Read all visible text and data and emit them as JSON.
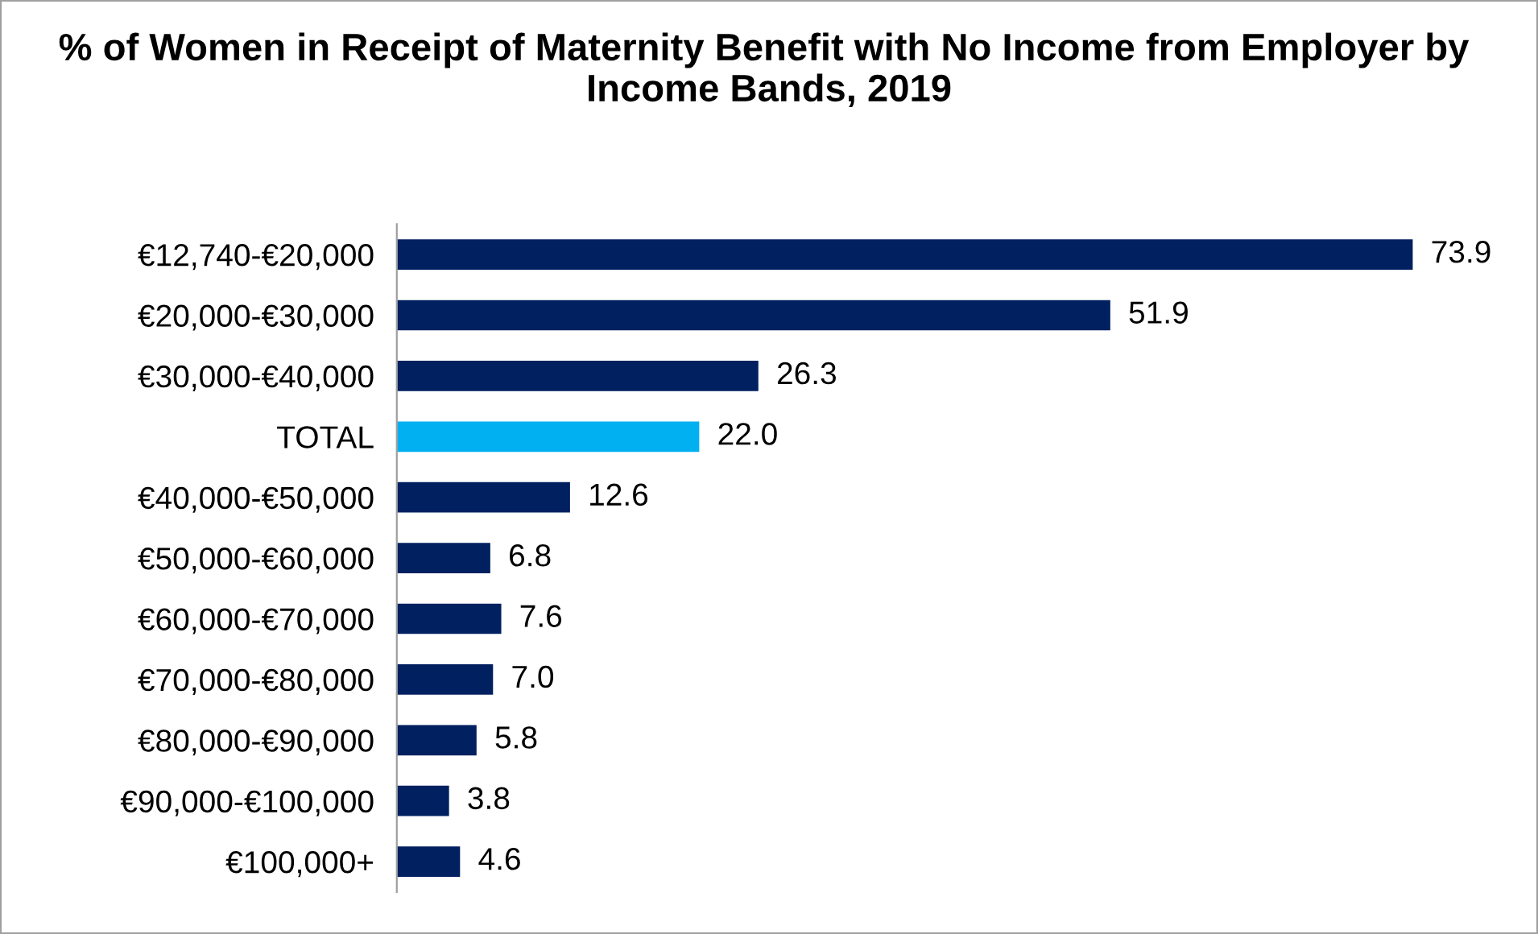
{
  "chart_data": {
    "type": "bar",
    "orientation": "horizontal",
    "title": "% of Women in Receipt of Maternity Benefit with No Income from Employer by  Income Bands, 2019",
    "categories": [
      "€12,740-€20,000",
      "€20,000-€30,000",
      "€30,000-€40,000",
      "TOTAL",
      "€40,000-€50,000",
      "€50,000-€60,000",
      "€60,000-€70,000",
      "€70,000-€80,000",
      "€80,000-€90,000",
      "€90,000-€100,000",
      "€100,000+"
    ],
    "values": [
      73.9,
      51.9,
      26.3,
      22.0,
      12.6,
      6.8,
      7.6,
      7.0,
      5.8,
      3.8,
      4.6
    ],
    "value_labels": [
      "73.9",
      "51.9",
      "26.3",
      "22.0",
      "12.6",
      "6.8",
      "7.6",
      "7.0",
      "5.8",
      "3.8",
      "4.6"
    ],
    "colors": [
      "#002060",
      "#002060",
      "#002060",
      "#00b0f0",
      "#002060",
      "#002060",
      "#002060",
      "#002060",
      "#002060",
      "#002060",
      "#002060"
    ],
    "grid": false,
    "legend": false
  }
}
